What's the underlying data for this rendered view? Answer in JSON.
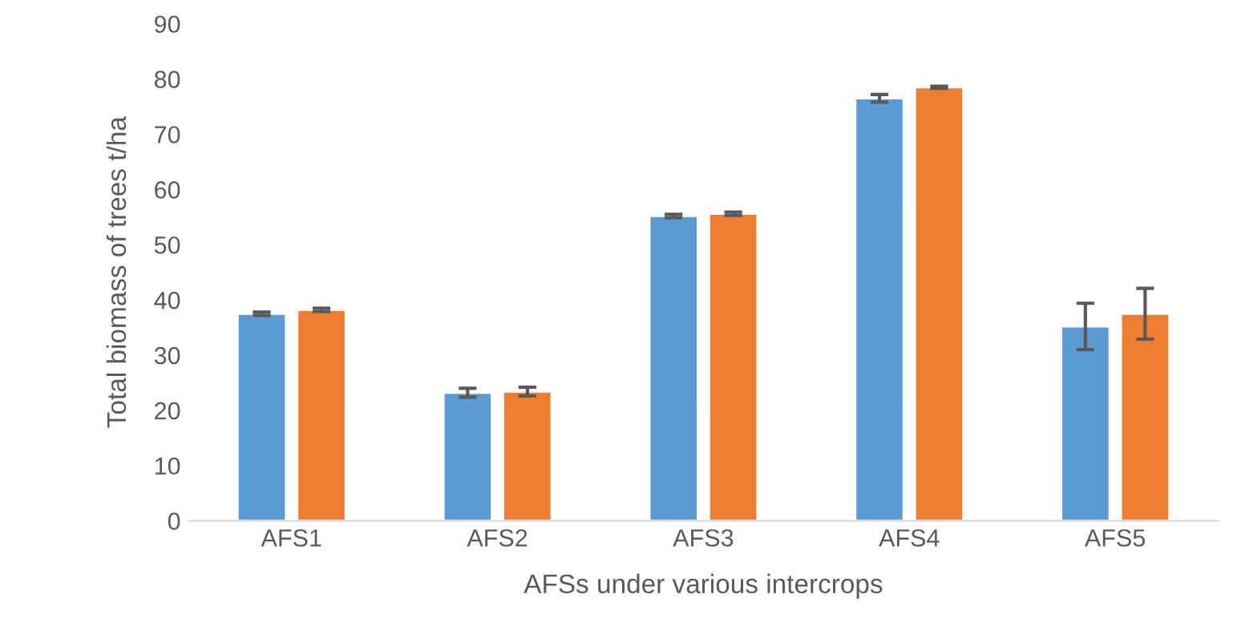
{
  "chart_data": {
    "type": "bar",
    "xlabel": "AFSs under various intercrops",
    "ylabel": "Total biomass of trees t/ha",
    "categories": [
      "AFS1",
      "AFS2",
      "AFS3",
      "AFS4",
      "AFS5"
    ],
    "series": [
      {
        "color": "#5b9bd5",
        "values": [
          37.5,
          23.2,
          55.2,
          76.5,
          35.2
        ],
        "errors": [
          0.3,
          0.8,
          0.3,
          0.7,
          4.2
        ]
      },
      {
        "color": "#ed7d31",
        "values": [
          38.2,
          23.4,
          55.6,
          78.5,
          37.5
        ],
        "errors": [
          0.3,
          0.8,
          0.3,
          0.2,
          4.6
        ]
      }
    ],
    "ylim": [
      0,
      90
    ],
    "yticks": [
      0,
      10,
      20,
      30,
      40,
      50,
      60,
      70,
      80,
      90
    ],
    "grid": false,
    "legend": false
  }
}
